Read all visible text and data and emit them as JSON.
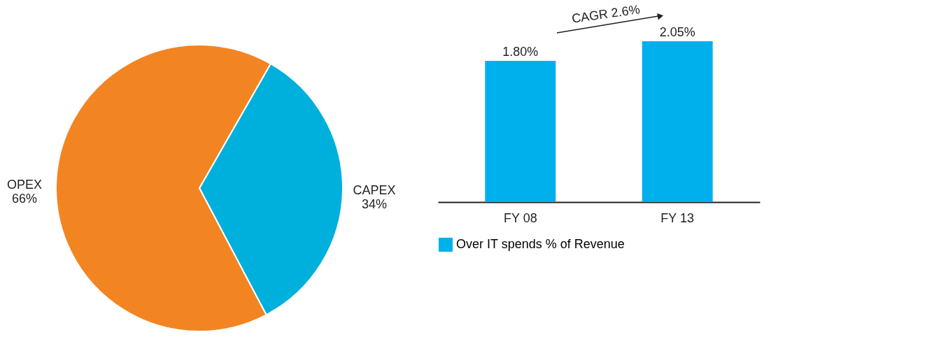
{
  "chart_data": [
    {
      "type": "pie",
      "categories": [
        "CAPEX",
        "OPEX"
      ],
      "values": [
        34,
        66
      ],
      "colors": [
        "#00b0dc",
        "#f28522"
      ],
      "value_labels": [
        "34%",
        "66%"
      ],
      "legend": false
    },
    {
      "type": "bar",
      "categories": [
        "FY 08",
        "FY 13"
      ],
      "series": [
        {
          "name": "Over IT spends % of Revenue",
          "color": "#00b0ec",
          "values": [
            1.8,
            2.05
          ],
          "value_labels": [
            "1.80%",
            "2.05%"
          ]
        }
      ],
      "tick_labels": "x",
      "legend": "bottom",
      "grid": false,
      "annotations": [
        "CAGR 2.6%"
      ]
    }
  ]
}
